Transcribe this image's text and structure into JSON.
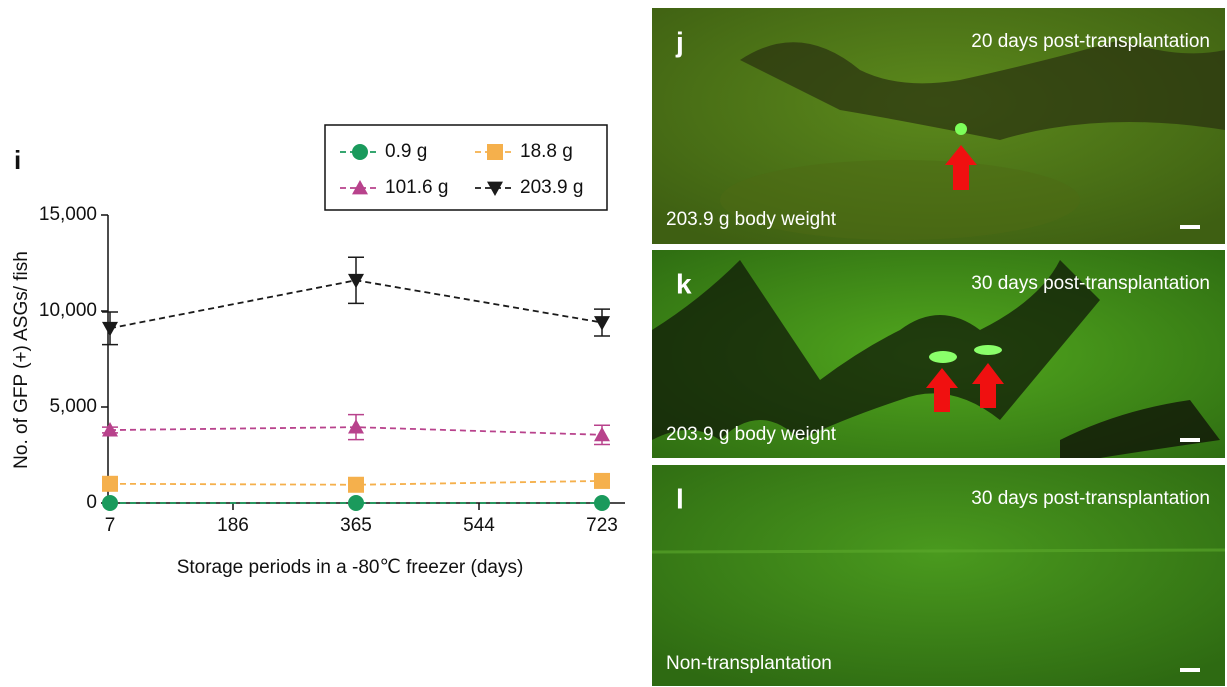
{
  "chart_data": {
    "type": "line",
    "panel_label": "i",
    "x_label": "Storage periods in a -80℃ freezer (days)",
    "y_label": "No. of GFP (+) ASGs/ fish",
    "x": [
      7,
      365,
      723
    ],
    "xlim": [
      7,
      723
    ],
    "xticks": [
      7,
      186,
      365,
      544,
      723
    ],
    "ylim": [
      0,
      15000
    ],
    "yticks": [
      0,
      {
        "value": 5000,
        "label": "5,000"
      },
      {
        "value": 10000,
        "label": "10,000"
      },
      {
        "value": 15000,
        "label": "15,000"
      }
    ],
    "series": [
      {
        "name": "0.9 g",
        "color": "#1a9a5c",
        "marker": "circle",
        "values": [
          0,
          0,
          0
        ],
        "errors": [
          0,
          0,
          0
        ]
      },
      {
        "name": "18.8 g",
        "color": "#f5b04c",
        "marker": "square",
        "values": [
          1000,
          950,
          1150
        ],
        "errors": [
          100,
          100,
          120
        ]
      },
      {
        "name": "101.6 g",
        "color": "#b8428c",
        "marker": "triangle-up",
        "values": [
          3800,
          3950,
          3550
        ],
        "errors": [
          150,
          650,
          500
        ]
      },
      {
        "name": "203.9 g",
        "color": "#1a1a1a",
        "marker": "triangle-down",
        "values": [
          9100,
          11600,
          9400
        ],
        "errors": [
          850,
          1200,
          700
        ]
      }
    ]
  },
  "image_panels": [
    {
      "label": "j",
      "time": "20 days post-transplantation",
      "caption": "203.9 g body weight"
    },
    {
      "label": "k",
      "time": "30 days post-transplantation",
      "caption": "203.9 g body weight"
    },
    {
      "label": "l",
      "time": "30 days post-transplantation",
      "caption": "Non-transplantation"
    }
  ]
}
